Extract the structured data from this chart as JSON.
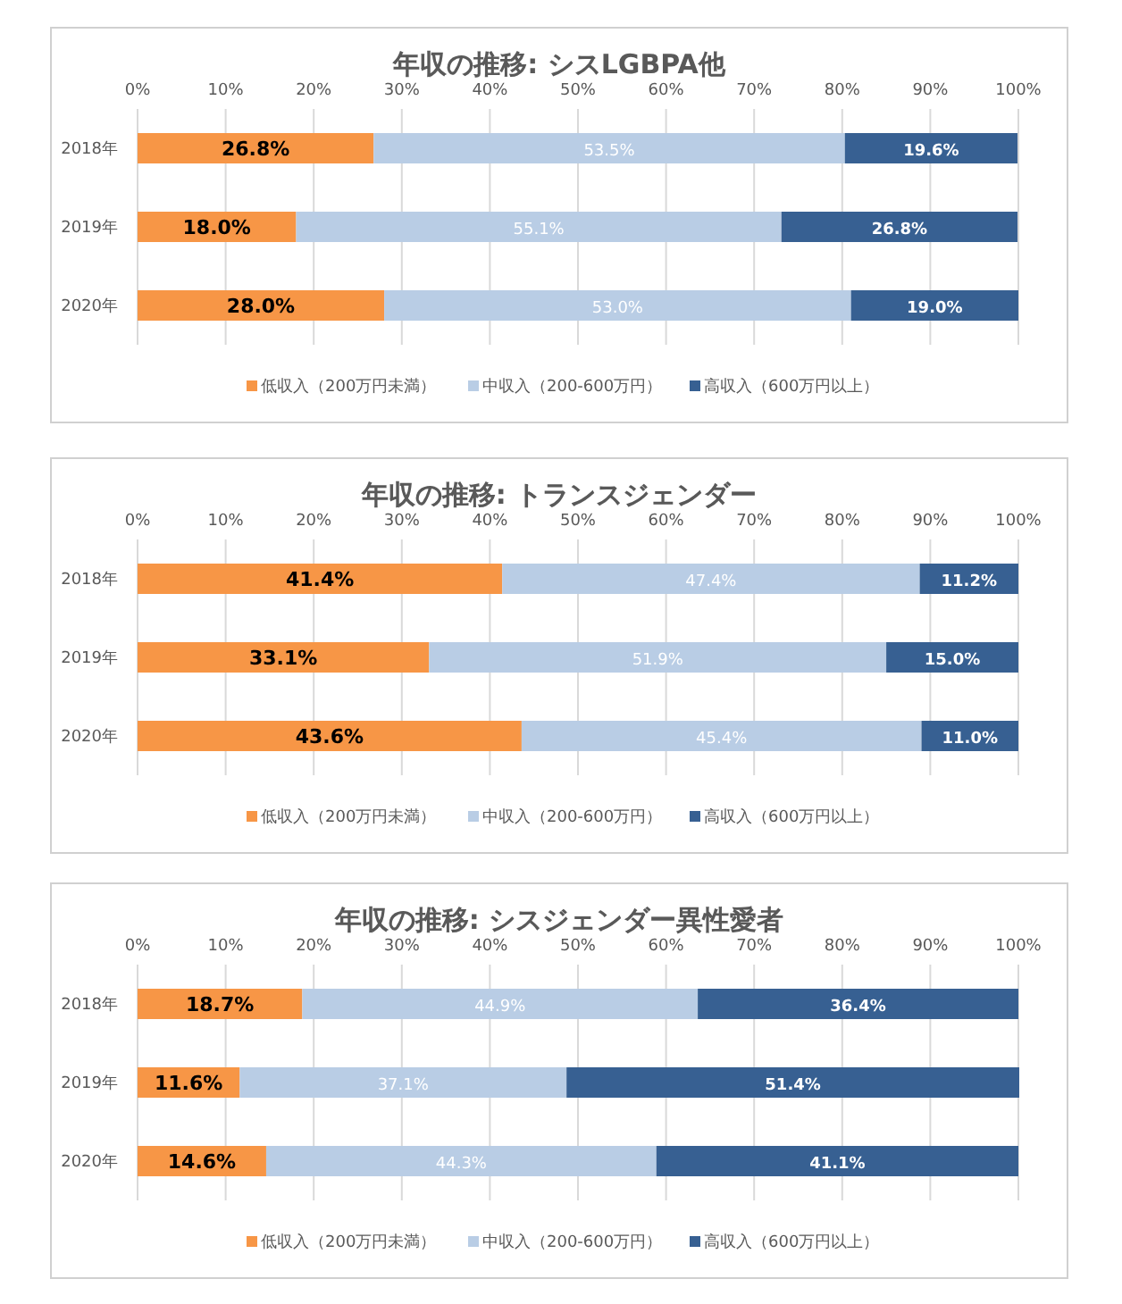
{
  "chart_data": [
    {
      "type": "bar",
      "orientation": "horizontal",
      "stacked": true,
      "title": "年収の推移: シスLGBPA他",
      "categories": [
        "2018年",
        "2019年",
        "2020年"
      ],
      "xlim": [
        0,
        100
      ],
      "xticks": [
        {
          "value": 0,
          "label": "0%"
        },
        {
          "value": 10,
          "label": "10%"
        },
        {
          "value": 20,
          "label": "20%"
        },
        {
          "value": 30,
          "label": "30%"
        },
        {
          "value": 40,
          "label": "40%"
        },
        {
          "value": 50,
          "label": "50%"
        },
        {
          "value": 60,
          "label": "60%"
        },
        {
          "value": 70,
          "label": "70%"
        },
        {
          "value": 80,
          "label": "80%"
        },
        {
          "value": 90,
          "label": "90%"
        },
        {
          "value": 100,
          "label": "100%"
        }
      ],
      "grid": "x",
      "legend": "bottom",
      "series": [
        {
          "name": "低収入（200万円未満）",
          "color": "#f79646",
          "values": [
            26.8,
            18.0,
            28.0
          ],
          "value_labels": [
            "26.8%",
            "18.0%",
            "28.0%"
          ]
        },
        {
          "name": "中収入（200-600万円）",
          "color": "#b9cde5",
          "values": [
            53.5,
            55.1,
            53.0
          ],
          "value_labels": [
            "53.5%",
            "55.1%",
            "53.0%"
          ]
        },
        {
          "name": "高収入（600万円以上）",
          "color": "#376092",
          "values": [
            19.6,
            26.8,
            19.0
          ],
          "value_labels": [
            "19.6%",
            "26.8%",
            "19.0%"
          ]
        }
      ]
    },
    {
      "type": "bar",
      "orientation": "horizontal",
      "stacked": true,
      "title": "年収の推移: トランスジェンダー",
      "categories": [
        "2018年",
        "2019年",
        "2020年"
      ],
      "xlim": [
        0,
        100
      ],
      "xticks": [
        {
          "value": 0,
          "label": "0%"
        },
        {
          "value": 10,
          "label": "10%"
        },
        {
          "value": 20,
          "label": "20%"
        },
        {
          "value": 30,
          "label": "30%"
        },
        {
          "value": 40,
          "label": "40%"
        },
        {
          "value": 50,
          "label": "50%"
        },
        {
          "value": 60,
          "label": "60%"
        },
        {
          "value": 70,
          "label": "70%"
        },
        {
          "value": 80,
          "label": "80%"
        },
        {
          "value": 90,
          "label": "90%"
        },
        {
          "value": 100,
          "label": "100%"
        }
      ],
      "grid": "x",
      "legend": "bottom",
      "series": [
        {
          "name": "低収入（200万円未満）",
          "color": "#f79646",
          "values": [
            41.4,
            33.1,
            43.6
          ],
          "value_labels": [
            "41.4%",
            "33.1%",
            "43.6%"
          ]
        },
        {
          "name": "中収入（200-600万円）",
          "color": "#b9cde5",
          "values": [
            47.4,
            51.9,
            45.4
          ],
          "value_labels": [
            "47.4%",
            "51.9%",
            "45.4%"
          ]
        },
        {
          "name": "高収入（600万円以上）",
          "color": "#376092",
          "values": [
            11.2,
            15.0,
            11.0
          ],
          "value_labels": [
            "11.2%",
            "15.0%",
            "11.0%"
          ]
        }
      ]
    },
    {
      "type": "bar",
      "orientation": "horizontal",
      "stacked": true,
      "title": "年収の推移: シスジェンダー異性愛者",
      "categories": [
        "2018年",
        "2019年",
        "2020年"
      ],
      "xlim": [
        0,
        100
      ],
      "xticks": [
        {
          "value": 0,
          "label": "0%"
        },
        {
          "value": 10,
          "label": "10%"
        },
        {
          "value": 20,
          "label": "20%"
        },
        {
          "value": 30,
          "label": "30%"
        },
        {
          "value": 40,
          "label": "40%"
        },
        {
          "value": 50,
          "label": "50%"
        },
        {
          "value": 60,
          "label": "60%"
        },
        {
          "value": 70,
          "label": "70%"
        },
        {
          "value": 80,
          "label": "80%"
        },
        {
          "value": 90,
          "label": "90%"
        },
        {
          "value": 100,
          "label": "100%"
        }
      ],
      "grid": "x",
      "legend": "bottom",
      "series": [
        {
          "name": "低収入（200万円未満）",
          "color": "#f79646",
          "values": [
            18.7,
            11.6,
            14.6
          ],
          "value_labels": [
            "18.7%",
            "11.6%",
            "14.6%"
          ]
        },
        {
          "name": "中収入（200-600万円）",
          "color": "#b9cde5",
          "values": [
            44.9,
            37.1,
            44.3
          ],
          "value_labels": [
            "44.9%",
            "37.1%",
            "44.3%"
          ]
        },
        {
          "name": "高収入（600万円以上）",
          "color": "#376092",
          "values": [
            36.4,
            51.4,
            41.1
          ],
          "value_labels": [
            "36.4%",
            "51.4%",
            "41.1%"
          ]
        }
      ]
    }
  ]
}
